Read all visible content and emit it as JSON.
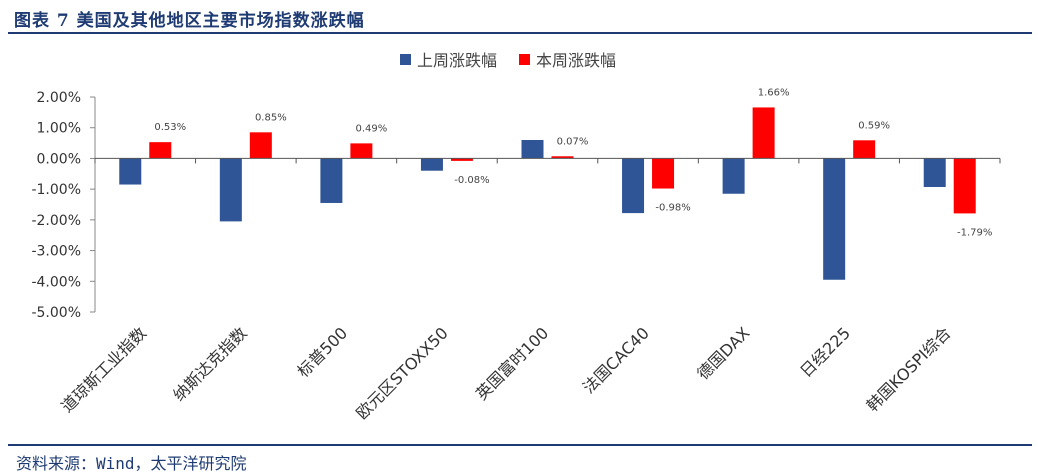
{
  "header": {
    "title": "图表 7 美国及其他地区主要市场指数涨跌幅"
  },
  "footer": {
    "source": "资料来源：Wind，太平洋研究院"
  },
  "colors": {
    "last_week": "#2f5597",
    "this_week": "#ff0000",
    "accent": "#1f3b73"
  },
  "chart_data": {
    "type": "bar",
    "categories": [
      "道琼斯工业指数",
      "纳斯达克指数",
      "标普500",
      "欧元区STOXX50",
      "英国富时100",
      "法国CAC40",
      "德国DAX",
      "日经225",
      "韩国KOSPI综合"
    ],
    "series": [
      {
        "name": "上周涨跌幅",
        "values": [
          -0.85,
          -2.05,
          -1.45,
          -0.4,
          0.6,
          -1.78,
          -1.15,
          -3.95,
          -0.93
        ]
      },
      {
        "name": "本周涨跌幅",
        "values": [
          0.53,
          0.85,
          0.49,
          -0.08,
          0.07,
          -0.98,
          1.66,
          0.59,
          -1.79
        ],
        "labels": [
          "0.53%",
          "0.85%",
          "0.49%",
          "-0.08%",
          "0.07%",
          "-0.98%",
          "1.66%",
          "0.59%",
          "-1.79%"
        ]
      }
    ],
    "yticks": [
      "2.00%",
      "1.00%",
      "0.00%",
      "-1.00%",
      "-2.00%",
      "-3.00%",
      "-4.00%",
      "-5.00%"
    ],
    "ylim": [
      -5,
      2
    ],
    "legend": "top-center",
    "grid": false
  }
}
